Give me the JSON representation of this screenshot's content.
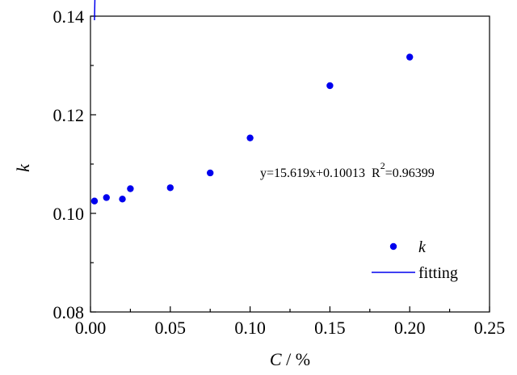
{
  "chart_data": {
    "type": "scatter",
    "title": "",
    "xlabel_italic": "C",
    "xlabel_rest": " / %",
    "ylabel": "k",
    "xlim": [
      0,
      0.25
    ],
    "ylim": [
      0.08,
      0.14
    ],
    "xticks": [
      "0.00",
      "0.05",
      "0.10",
      "0.15",
      "0.20",
      "0.25"
    ],
    "yticks": [
      "0.08",
      "0.10",
      "0.12",
      "0.14"
    ],
    "grid": false,
    "legend_position": "lower-right",
    "series": [
      {
        "name": "k",
        "kind": "scatter",
        "color": "#0000ee",
        "x": [
          0.0025,
          0.01,
          0.02,
          0.025,
          0.05,
          0.075,
          0.1,
          0.15,
          0.2
        ],
        "y": [
          0.1025,
          0.1032,
          0.1029,
          0.105,
          0.1052,
          0.1082,
          0.1153,
          0.1259,
          0.1317
        ]
      },
      {
        "name": "fitting",
        "kind": "line",
        "color": "#0000ee",
        "slope": 15.619,
        "intercept": 0.10013,
        "x_range": [
          0.0025,
          0.2
        ]
      }
    ],
    "annotation": {
      "equation": "y=15.619x+0.10013",
      "r_label": "R",
      "r_sup": "2",
      "r_value": "=0.96399"
    }
  }
}
